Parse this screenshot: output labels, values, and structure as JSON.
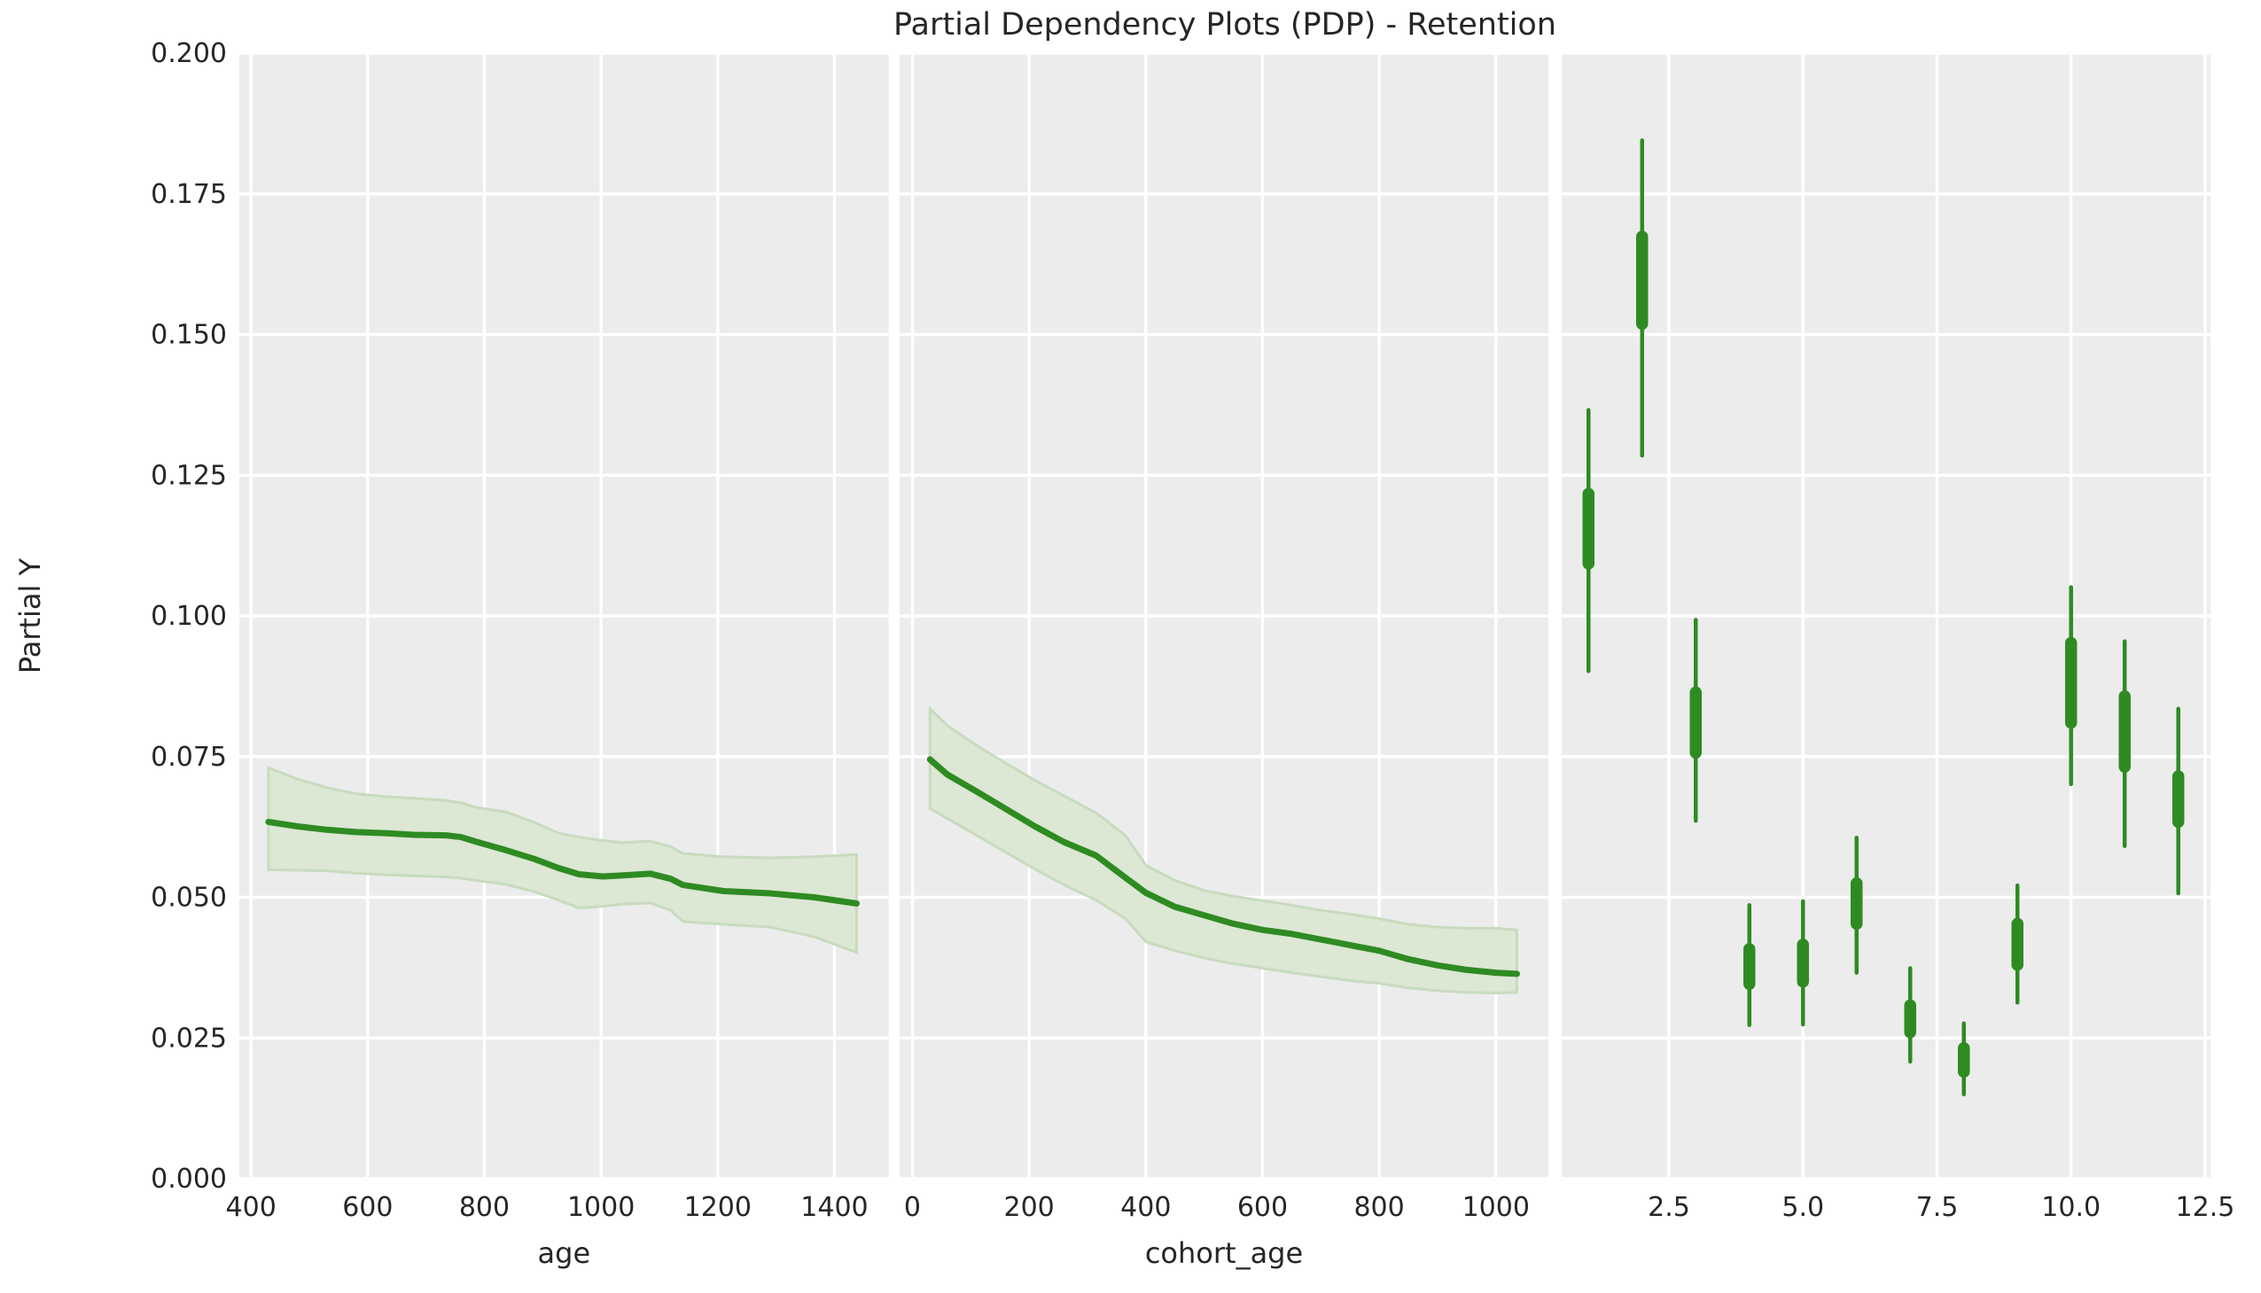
{
  "chart_data": {
    "title": "Partial Dependency Plots (PDP) - Retention",
    "ylabel": "Partial Y",
    "ylim": [
      0.0,
      0.2
    ],
    "yticks": [
      0.0,
      0.025,
      0.05,
      0.075,
      0.1,
      0.125,
      0.15,
      0.175,
      0.2
    ],
    "grid": true,
    "colors": {
      "panel_bg": "#ECECEC",
      "grid": "#FFFFFF",
      "line": "#2E8B22",
      "band_fill": "#DCE7D4",
      "band_edge": "#C8DBBE",
      "text": "#262626",
      "figure_bg": "#FFFFFF"
    },
    "panels": [
      {
        "type": "line",
        "xlabel": "age",
        "xticks": [
          400,
          600,
          800,
          1000,
          1200,
          1400
        ],
        "xlim": [
          380,
          1493
        ],
        "x": [
          430,
          480,
          530,
          580,
          630,
          680,
          735,
          760,
          785,
          836,
          886,
          927,
          962,
          1003,
          1038,
          1084,
          1119,
          1140,
          1210,
          1290,
          1365,
          1438
        ],
        "y": [
          0.0634,
          0.0626,
          0.062,
          0.0616,
          0.0614,
          0.0611,
          0.061,
          0.0607,
          0.0599,
          0.0584,
          0.0568,
          0.0552,
          0.0541,
          0.0537,
          0.0539,
          0.0542,
          0.0533,
          0.0522,
          0.0511,
          0.0507,
          0.05,
          0.0489
        ],
        "band_top": [
          0.073,
          0.071,
          0.0695,
          0.0684,
          0.0679,
          0.0676,
          0.0672,
          0.0668,
          0.066,
          0.0652,
          0.0633,
          0.0614,
          0.0607,
          0.0601,
          0.0597,
          0.06,
          0.059,
          0.0578,
          0.0572,
          0.057,
          0.0572,
          0.0576
        ],
        "band_bot": [
          0.0549,
          0.0548,
          0.0547,
          0.0543,
          0.054,
          0.0538,
          0.0536,
          0.0534,
          0.053,
          0.0523,
          0.051,
          0.0495,
          0.0481,
          0.0484,
          0.0488,
          0.049,
          0.0477,
          0.0457,
          0.0452,
          0.0447,
          0.043,
          0.0402
        ]
      },
      {
        "type": "line",
        "xlabel": "cohort_age",
        "xticks": [
          0,
          200,
          400,
          600,
          800,
          1000
        ],
        "xlim": [
          -22,
          1090
        ],
        "x": [
          30,
          60,
          110,
          160,
          210,
          260,
          315,
          365,
          400,
          450,
          500,
          550,
          600,
          650,
          700,
          750,
          800,
          850,
          900,
          950,
          1000,
          1036
        ],
        "y": [
          0.0745,
          0.0718,
          0.0688,
          0.0657,
          0.0626,
          0.0598,
          0.0574,
          0.0535,
          0.0508,
          0.0483,
          0.0468,
          0.0453,
          0.0442,
          0.0435,
          0.0425,
          0.0415,
          0.0405,
          0.039,
          0.0379,
          0.0371,
          0.0366,
          0.0364
        ],
        "band_top": [
          0.0835,
          0.0805,
          0.077,
          0.0738,
          0.0708,
          0.068,
          0.065,
          0.061,
          0.0557,
          0.053,
          0.0512,
          0.0502,
          0.0494,
          0.0486,
          0.0477,
          0.047,
          0.0462,
          0.0452,
          0.0447,
          0.0445,
          0.0445,
          0.0442
        ],
        "band_bot": [
          0.0658,
          0.064,
          0.061,
          0.058,
          0.055,
          0.0522,
          0.0495,
          0.0462,
          0.0421,
          0.0405,
          0.0392,
          0.0382,
          0.0374,
          0.0366,
          0.0359,
          0.0352,
          0.0347,
          0.0339,
          0.0334,
          0.0331,
          0.033,
          0.0331
        ]
      },
      {
        "type": "errorbar",
        "xlabel": "",
        "xticks": [
          2.5,
          5.0,
          7.5,
          10.0,
          12.5
        ],
        "xlim": [
          0.5,
          12.6
        ],
        "categories": [
          1,
          2,
          3,
          4,
          5,
          6,
          7,
          8,
          9,
          10,
          11,
          12
        ],
        "whisker_low": [
          0.0902,
          0.1285,
          0.0636,
          0.0273,
          0.0274,
          0.0366,
          0.0208,
          0.015,
          0.0313,
          0.0701,
          0.0591,
          0.0507
        ],
        "whisker_high": [
          0.1366,
          0.1845,
          0.0993,
          0.0486,
          0.0493,
          0.0606,
          0.0374,
          0.0276,
          0.0521,
          0.1051,
          0.0955,
          0.0835
        ],
        "box_low": [
          0.1093,
          0.1519,
          0.0757,
          0.0346,
          0.035,
          0.0453,
          0.026,
          0.019,
          0.038,
          0.081,
          0.0732,
          0.0634
        ],
        "box_high": [
          0.1217,
          0.1674,
          0.0864,
          0.0408,
          0.0416,
          0.0525,
          0.0308,
          0.0232,
          0.0453,
          0.0952,
          0.0857,
          0.0715
        ]
      }
    ]
  }
}
